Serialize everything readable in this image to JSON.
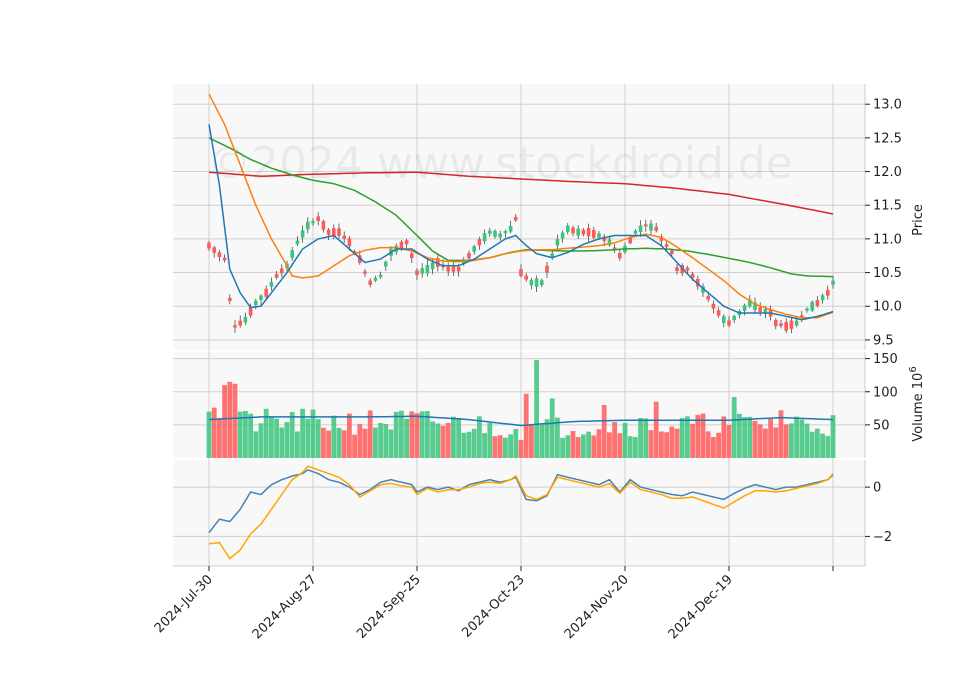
{
  "chart_data": {
    "type": "candlestick",
    "watermark": "©2024 www.stockdroid.de",
    "x_tick_labels": [
      "2024-Jul-30",
      "2024-Aug-27",
      "2024-Sep-25",
      "2024-Oct-23",
      "2024-Nov-20",
      "2024-Dec-19"
    ],
    "x_tick_index": [
      0,
      20,
      40,
      60,
      80,
      100
    ],
    "session_count": 121,
    "colors": {
      "up": "#3cc47c",
      "down": "#ff5a5a",
      "ma_fast": "#1f77b4",
      "ma_mid": "#ff7f0e",
      "ma_slow": "#2ca02c",
      "ma_long": "#d62728",
      "vol_ma": "#1f77b4",
      "osc_a": "#4682b4",
      "osc_b": "#ffa500",
      "panel_bg": "#f8f8f8",
      "grid": "#d0d0d0"
    },
    "price_panel": {
      "ylabel": "Price",
      "ylim": [
        9.35,
        13.3
      ],
      "yticks": [
        "9.5",
        "10.0",
        "10.5",
        "11.0",
        "11.5",
        "12.0",
        "12.5",
        "13.0"
      ],
      "anchors": [
        [
          0,
          10.9
        ],
        [
          3,
          10.7
        ],
        [
          4,
          10.1
        ],
        [
          5,
          9.7
        ],
        [
          7,
          9.8
        ],
        [
          9,
          10.05
        ],
        [
          11,
          10.2
        ],
        [
          13,
          10.45
        ],
        [
          15,
          10.6
        ],
        [
          17,
          10.95
        ],
        [
          19,
          11.2
        ],
        [
          21,
          11.3
        ],
        [
          23,
          11.1
        ],
        [
          25,
          11.1
        ],
        [
          27,
          10.95
        ],
        [
          28,
          10.8
        ],
        [
          29,
          10.7
        ],
        [
          30,
          10.5
        ],
        [
          31,
          10.35
        ],
        [
          33,
          10.45
        ],
        [
          35,
          10.8
        ],
        [
          37,
          10.9
        ],
        [
          38,
          10.95
        ],
        [
          39,
          10.75
        ],
        [
          40,
          10.5
        ],
        [
          42,
          10.55
        ],
        [
          44,
          10.65
        ],
        [
          46,
          10.55
        ],
        [
          48,
          10.55
        ],
        [
          50,
          10.75
        ],
        [
          52,
          10.95
        ],
        [
          54,
          11.1
        ],
        [
          56,
          11.05
        ],
        [
          58,
          11.15
        ],
        [
          59,
          11.3
        ],
        [
          60,
          10.5
        ],
        [
          62,
          10.35
        ],
        [
          64,
          10.35
        ],
        [
          65,
          10.55
        ],
        [
          67,
          10.95
        ],
        [
          69,
          11.15
        ],
        [
          71,
          11.1
        ],
        [
          73,
          11.1
        ],
        [
          75,
          11.05
        ],
        [
          77,
          10.95
        ],
        [
          78,
          10.85
        ],
        [
          79,
          10.75
        ],
        [
          80,
          10.85
        ],
        [
          82,
          11.1
        ],
        [
          84,
          11.2
        ],
        [
          86,
          11.15
        ],
        [
          87,
          11.0
        ],
        [
          89,
          10.8
        ],
        [
          90,
          10.55
        ],
        [
          92,
          10.55
        ],
        [
          93,
          10.45
        ],
        [
          95,
          10.25
        ],
        [
          97,
          10.0
        ],
        [
          99,
          9.8
        ],
        [
          100,
          9.75
        ],
        [
          102,
          9.9
        ],
        [
          104,
          10.05
        ],
        [
          106,
          9.95
        ],
        [
          108,
          9.9
        ],
        [
          109,
          9.75
        ],
        [
          111,
          9.7
        ],
        [
          113,
          9.75
        ],
        [
          115,
          9.95
        ],
        [
          117,
          10.05
        ],
        [
          119,
          10.2
        ],
        [
          120,
          10.35
        ]
      ],
      "ma_fast": [
        [
          0,
          12.7
        ],
        [
          2,
          11.8
        ],
        [
          4,
          10.55
        ],
        [
          6,
          10.2
        ],
        [
          8,
          9.98
        ],
        [
          10,
          10.0
        ],
        [
          12,
          10.2
        ],
        [
          15,
          10.5
        ],
        [
          18,
          10.85
        ],
        [
          21,
          11.0
        ],
        [
          24,
          11.05
        ],
        [
          27,
          10.85
        ],
        [
          30,
          10.65
        ],
        [
          33,
          10.7
        ],
        [
          36,
          10.85
        ],
        [
          39,
          10.85
        ],
        [
          42,
          10.7
        ],
        [
          45,
          10.6
        ],
        [
          48,
          10.6
        ],
        [
          51,
          10.7
        ],
        [
          54,
          10.85
        ],
        [
          57,
          11.0
        ],
        [
          59,
          11.05
        ],
        [
          61,
          10.9
        ],
        [
          63,
          10.78
        ],
        [
          66,
          10.72
        ],
        [
          69,
          10.8
        ],
        [
          72,
          10.92
        ],
        [
          75,
          11.0
        ],
        [
          78,
          11.05
        ],
        [
          81,
          11.05
        ],
        [
          84,
          11.05
        ],
        [
          87,
          10.9
        ],
        [
          90,
          10.65
        ],
        [
          93,
          10.4
        ],
        [
          96,
          10.2
        ],
        [
          99,
          10.0
        ],
        [
          102,
          9.9
        ],
        [
          105,
          9.9
        ],
        [
          108,
          9.9
        ],
        [
          111,
          9.85
        ],
        [
          114,
          9.8
        ],
        [
          117,
          9.85
        ],
        [
          120,
          9.92
        ]
      ],
      "ma_mid": [
        [
          0,
          13.15
        ],
        [
          3,
          12.7
        ],
        [
          6,
          12.1
        ],
        [
          9,
          11.5
        ],
        [
          12,
          11.0
        ],
        [
          15,
          10.6
        ],
        [
          16,
          10.45
        ],
        [
          18,
          10.42
        ],
        [
          21,
          10.45
        ],
        [
          24,
          10.6
        ],
        [
          27,
          10.75
        ],
        [
          30,
          10.83
        ],
        [
          33,
          10.87
        ],
        [
          36,
          10.87
        ],
        [
          39,
          10.82
        ],
        [
          42,
          10.72
        ],
        [
          45,
          10.67
        ],
        [
          48,
          10.66
        ],
        [
          51,
          10.68
        ],
        [
          54,
          10.72
        ],
        [
          57,
          10.78
        ],
        [
          60,
          10.82
        ],
        [
          63,
          10.84
        ],
        [
          66,
          10.84
        ],
        [
          69,
          10.86
        ],
        [
          72,
          10.88
        ],
        [
          75,
          10.9
        ],
        [
          78,
          10.94
        ],
        [
          81,
          11.02
        ],
        [
          84,
          11.07
        ],
        [
          87,
          11.02
        ],
        [
          90,
          10.88
        ],
        [
          93,
          10.72
        ],
        [
          96,
          10.55
        ],
        [
          99,
          10.38
        ],
        [
          102,
          10.18
        ],
        [
          105,
          10.03
        ],
        [
          108,
          9.95
        ],
        [
          111,
          9.88
        ],
        [
          114,
          9.83
        ],
        [
          117,
          9.83
        ],
        [
          120,
          9.91
        ]
      ],
      "ma_slow": [
        [
          0,
          12.5
        ],
        [
          4,
          12.35
        ],
        [
          8,
          12.18
        ],
        [
          12,
          12.05
        ],
        [
          16,
          11.95
        ],
        [
          20,
          11.87
        ],
        [
          24,
          11.82
        ],
        [
          28,
          11.72
        ],
        [
          32,
          11.55
        ],
        [
          36,
          11.35
        ],
        [
          40,
          11.05
        ],
        [
          43,
          10.82
        ],
        [
          46,
          10.68
        ],
        [
          50,
          10.68
        ],
        [
          54,
          10.72
        ],
        [
          58,
          10.8
        ],
        [
          61,
          10.84
        ],
        [
          64,
          10.83
        ],
        [
          68,
          10.82
        ],
        [
          72,
          10.82
        ],
        [
          76,
          10.83
        ],
        [
          80,
          10.85
        ],
        [
          84,
          10.86
        ],
        [
          88,
          10.85
        ],
        [
          92,
          10.82
        ],
        [
          96,
          10.77
        ],
        [
          100,
          10.71
        ],
        [
          104,
          10.65
        ],
        [
          108,
          10.57
        ],
        [
          112,
          10.48
        ],
        [
          115,
          10.45
        ],
        [
          120,
          10.44
        ]
      ],
      "ma_long": [
        [
          0,
          11.99
        ],
        [
          10,
          11.93
        ],
        [
          20,
          11.96
        ],
        [
          30,
          11.98
        ],
        [
          40,
          11.99
        ],
        [
          50,
          11.93
        ],
        [
          60,
          11.89
        ],
        [
          70,
          11.85
        ],
        [
          80,
          11.82
        ],
        [
          90,
          11.75
        ],
        [
          100,
          11.66
        ],
        [
          110,
          11.52
        ],
        [
          120,
          11.37
        ]
      ]
    },
    "volume_panel": {
      "ylabel": "Volume  10^6",
      "ylim": [
        0,
        160
      ],
      "yticks": [
        "50",
        "100",
        "150"
      ],
      "spikes": [
        [
          61,
          97
        ],
        [
          63,
          148
        ],
        [
          66,
          90
        ],
        [
          76,
          80
        ],
        [
          86,
          85
        ],
        [
          101,
          92
        ],
        [
          110,
          72
        ]
      ],
      "ma": [
        [
          0,
          58
        ],
        [
          10,
          62
        ],
        [
          30,
          62
        ],
        [
          40,
          63
        ],
        [
          50,
          58
        ],
        [
          60,
          49
        ],
        [
          70,
          55
        ],
        [
          80,
          57
        ],
        [
          90,
          57
        ],
        [
          100,
          57
        ],
        [
          110,
          61
        ],
        [
          120,
          58
        ]
      ]
    },
    "oscillator_panel": {
      "ylim": [
        -3.2,
        1.1
      ],
      "yticks": [
        "−2",
        "0"
      ],
      "line_a": [
        [
          0,
          -1.85
        ],
        [
          2,
          -1.3
        ],
        [
          4,
          -1.4
        ],
        [
          6,
          -0.9
        ],
        [
          8,
          -0.2
        ],
        [
          10,
          -0.3
        ],
        [
          12,
          0.1
        ],
        [
          14,
          0.3
        ],
        [
          16,
          0.45
        ],
        [
          18,
          0.55
        ],
        [
          19,
          0.7
        ],
        [
          21,
          0.55
        ],
        [
          23,
          0.3
        ],
        [
          25,
          0.2
        ],
        [
          27,
          0.0
        ],
        [
          29,
          -0.3
        ],
        [
          31,
          -0.1
        ],
        [
          33,
          0.2
        ],
        [
          35,
          0.3
        ],
        [
          37,
          0.2
        ],
        [
          39,
          0.1
        ],
        [
          40,
          -0.2
        ],
        [
          42,
          0.0
        ],
        [
          44,
          -0.1
        ],
        [
          46,
          0.0
        ],
        [
          48,
          -0.15
        ],
        [
          50,
          0.1
        ],
        [
          52,
          0.2
        ],
        [
          54,
          0.3
        ],
        [
          56,
          0.2
        ],
        [
          58,
          0.3
        ],
        [
          59,
          0.4
        ],
        [
          61,
          -0.5
        ],
        [
          63,
          -0.55
        ],
        [
          65,
          -0.35
        ],
        [
          67,
          0.5
        ],
        [
          69,
          0.4
        ],
        [
          71,
          0.3
        ],
        [
          73,
          0.2
        ],
        [
          75,
          0.1
        ],
        [
          77,
          0.3
        ],
        [
          79,
          -0.2
        ],
        [
          81,
          0.3
        ],
        [
          83,
          0.0
        ],
        [
          85,
          -0.1
        ],
        [
          87,
          -0.2
        ],
        [
          89,
          -0.3
        ],
        [
          91,
          -0.35
        ],
        [
          93,
          -0.2
        ],
        [
          95,
          -0.3
        ],
        [
          97,
          -0.4
        ],
        [
          99,
          -0.5
        ],
        [
          101,
          -0.25
        ],
        [
          103,
          -0.05
        ],
        [
          105,
          0.1
        ],
        [
          107,
          0.0
        ],
        [
          109,
          -0.1
        ],
        [
          111,
          0.0
        ],
        [
          113,
          0.0
        ],
        [
          115,
          0.1
        ],
        [
          117,
          0.2
        ],
        [
          119,
          0.3
        ],
        [
          120,
          0.5
        ]
      ],
      "line_b": [
        [
          0,
          -2.3
        ],
        [
          2,
          -2.25
        ],
        [
          4,
          -2.9
        ],
        [
          6,
          -2.55
        ],
        [
          8,
          -1.9
        ],
        [
          10,
          -1.5
        ],
        [
          12,
          -0.9
        ],
        [
          14,
          -0.3
        ],
        [
          16,
          0.3
        ],
        [
          18,
          0.6
        ],
        [
          19,
          0.85
        ],
        [
          21,
          0.7
        ],
        [
          23,
          0.55
        ],
        [
          25,
          0.4
        ],
        [
          27,
          0.1
        ],
        [
          29,
          -0.4
        ],
        [
          31,
          -0.15
        ],
        [
          33,
          0.1
        ],
        [
          35,
          0.15
        ],
        [
          37,
          0.05
        ],
        [
          39,
          0.0
        ],
        [
          40,
          -0.3
        ],
        [
          42,
          -0.05
        ],
        [
          44,
          -0.2
        ],
        [
          46,
          -0.1
        ],
        [
          48,
          -0.1
        ],
        [
          50,
          0.0
        ],
        [
          52,
          0.15
        ],
        [
          54,
          0.2
        ],
        [
          56,
          0.15
        ],
        [
          58,
          0.3
        ],
        [
          59,
          0.45
        ],
        [
          61,
          -0.35
        ],
        [
          63,
          -0.5
        ],
        [
          65,
          -0.3
        ],
        [
          67,
          0.4
        ],
        [
          69,
          0.3
        ],
        [
          71,
          0.2
        ],
        [
          73,
          0.1
        ],
        [
          75,
          0.0
        ],
        [
          77,
          0.15
        ],
        [
          79,
          -0.25
        ],
        [
          81,
          0.2
        ],
        [
          83,
          -0.1
        ],
        [
          85,
          -0.2
        ],
        [
          87,
          -0.3
        ],
        [
          89,
          -0.45
        ],
        [
          91,
          -0.45
        ],
        [
          93,
          -0.4
        ],
        [
          95,
          -0.55
        ],
        [
          97,
          -0.7
        ],
        [
          99,
          -0.85
        ],
        [
          101,
          -0.6
        ],
        [
          103,
          -0.35
        ],
        [
          105,
          -0.15
        ],
        [
          107,
          -0.15
        ],
        [
          109,
          -0.2
        ],
        [
          111,
          -0.15
        ],
        [
          113,
          -0.05
        ],
        [
          115,
          0.05
        ],
        [
          117,
          0.15
        ],
        [
          119,
          0.3
        ],
        [
          120,
          0.55
        ]
      ]
    }
  }
}
